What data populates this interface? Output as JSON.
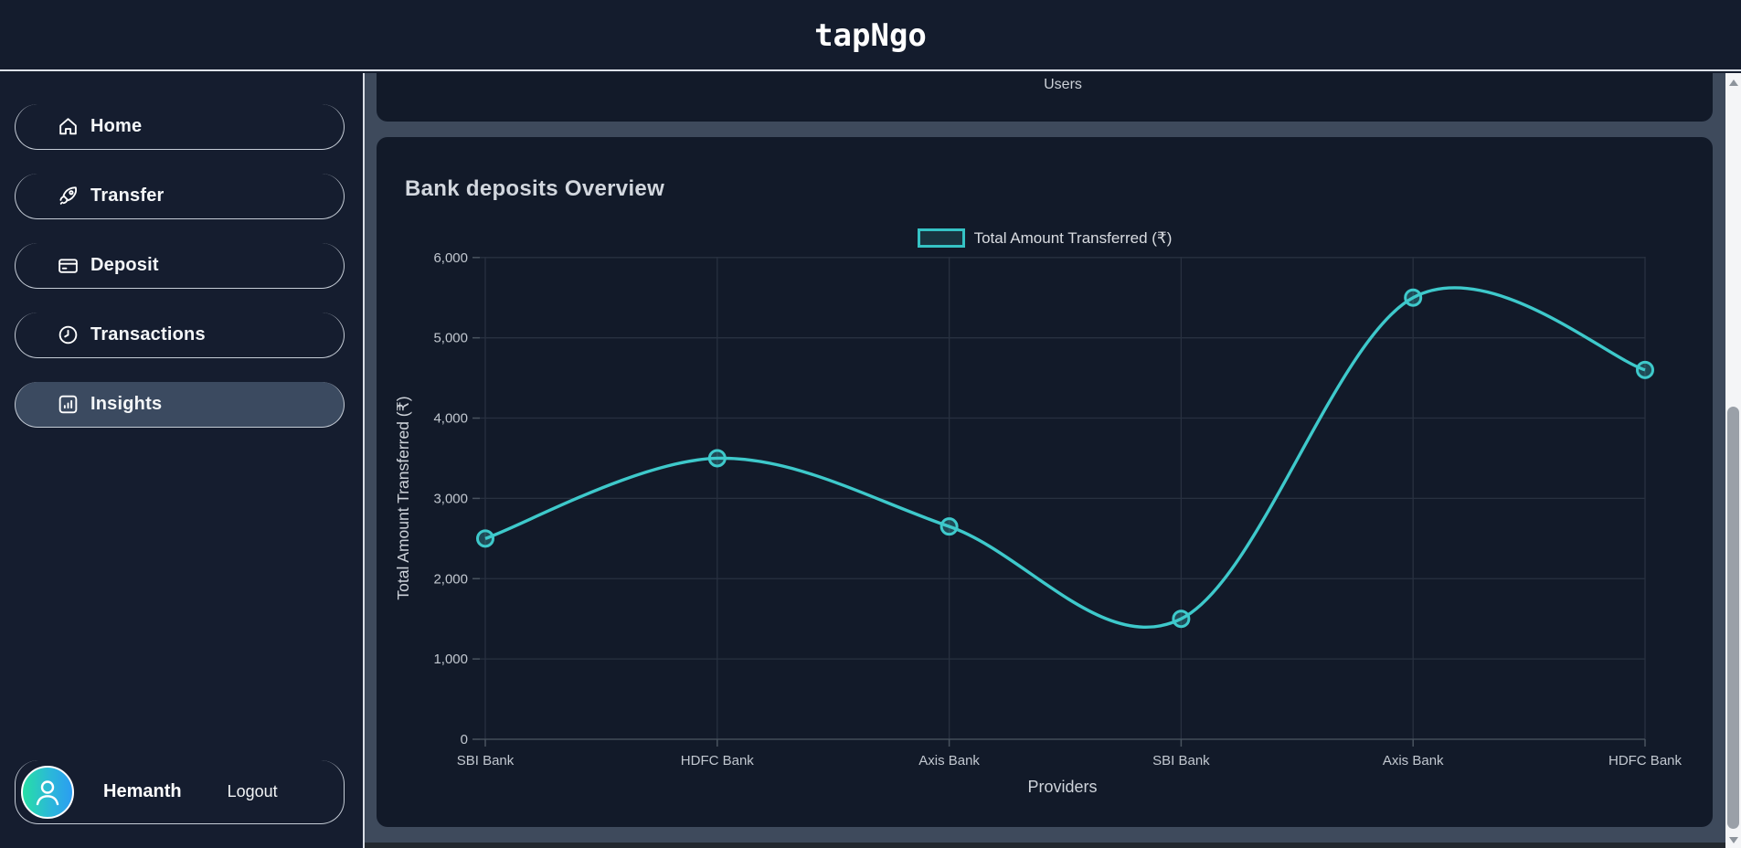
{
  "header": {
    "title": "tapNgo"
  },
  "sidebar": {
    "items": [
      {
        "label": "Home",
        "icon": "home-icon",
        "selected": false
      },
      {
        "label": "Transfer",
        "icon": "rocket-icon",
        "selected": false
      },
      {
        "label": "Deposit",
        "icon": "credit-card-icon",
        "selected": false
      },
      {
        "label": "Transactions",
        "icon": "clock-icon",
        "selected": false
      },
      {
        "label": "Insights",
        "icon": "bar-chart-icon",
        "selected": true
      }
    ],
    "user": {
      "name": "Hemanth",
      "logout_label": "Logout"
    }
  },
  "main": {
    "previous_card_label": "Users",
    "card_title": "Bank deposits Overview"
  },
  "chart_data": {
    "type": "line",
    "title": "Bank deposits Overview",
    "categories": [
      "SBI Bank",
      "HDFC Bank",
      "Axis Bank",
      "SBI Bank",
      "Axis Bank",
      "HDFC Bank"
    ],
    "series": [
      {
        "name": "Total Amount Transferred (₹)",
        "values": [
          2500,
          3500,
          2650,
          1500,
          5500,
          4600
        ]
      }
    ],
    "xlabel": "Providers",
    "ylabel": "Total Amount Transferred (₹)",
    "ylim": [
      0,
      6000
    ],
    "ytick_step": 1000,
    "grid": true,
    "legend_position": "top",
    "line_color": "#3ec9cb",
    "point_fill": "rgba(62,201,203,0.28)",
    "grid_color": "#283140",
    "tick_color": "#49535f",
    "label_color": "#c2c8d0",
    "axis_title_color": "#ced3da"
  },
  "colors": {
    "header_bg": "#141c2d",
    "sidebar_bg": "#151d2f",
    "content_bg": "#3e4a5c",
    "card_bg": "#121a29",
    "selected_item_bg": "#3b4a60",
    "accent_teal": "#3ec9cb",
    "avatar_gradient_start": "#27dfa5",
    "avatar_gradient_end": "#2b9df2"
  }
}
